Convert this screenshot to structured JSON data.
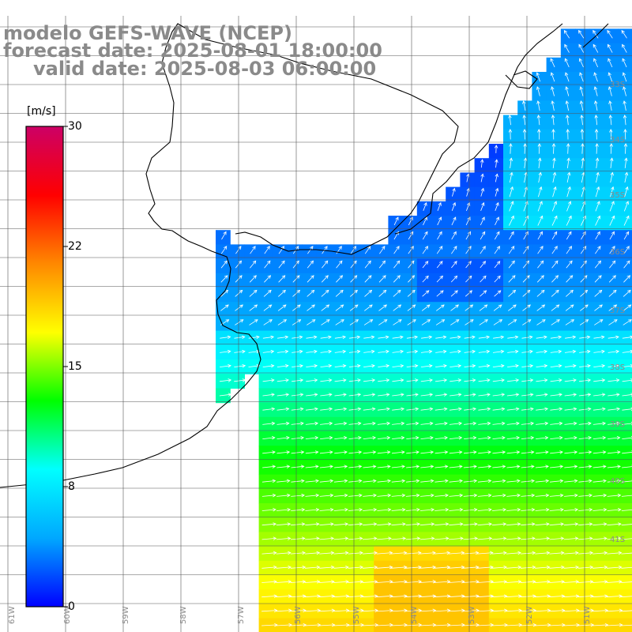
{
  "titles": {
    "line1": "modelo GEFS-WAVE (NCEP)",
    "line2": "forecast date: 2025-08-01 18:00:00",
    "line3": "valid date: 2025-08-03 06:00:00"
  },
  "colorbar": {
    "unit": "[m/s]",
    "ticks": [
      "30",
      "22",
      "15",
      "8",
      "0"
    ],
    "colors": [
      "#0000ff",
      "#00a8ff",
      "#00ffff",
      "#00ff00",
      "#ffff00",
      "#ff8800",
      "#ff0000",
      "#cc0066"
    ]
  },
  "lon_labels": [
    "61W",
    "60W",
    "59W",
    "58W",
    "57W",
    "56W",
    "55W",
    "54W",
    "53W",
    "52W",
    "51W"
  ],
  "lat_labels": [
    "33S",
    "34S",
    "35S",
    "36S",
    "37S",
    "38S",
    "39S",
    "40S",
    "41S"
  ],
  "variable": "wind speed",
  "colors": {
    "grid": "#555555",
    "coast": "#000000",
    "arrow": "#ffffff",
    "land": "#ffffff",
    "title": "#8a8a8a"
  }
}
